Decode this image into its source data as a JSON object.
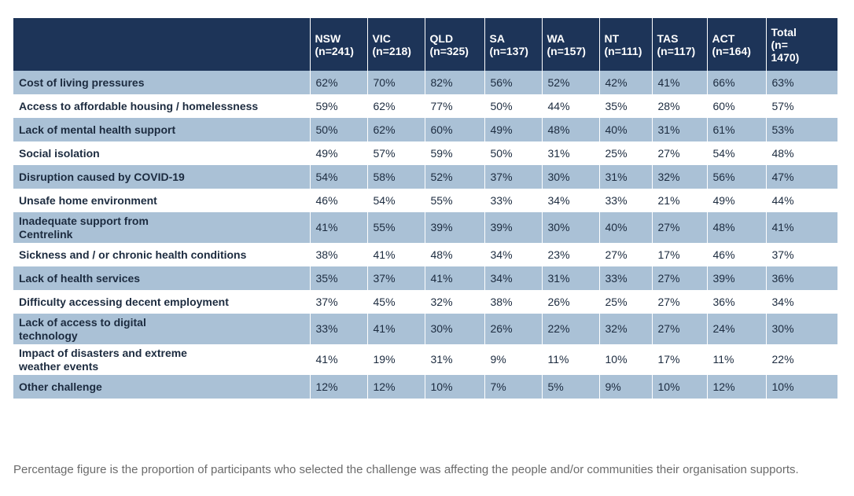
{
  "table": {
    "headers": [
      {
        "name": "",
        "sub": ""
      },
      {
        "name": "NSW",
        "sub": "(n=241)"
      },
      {
        "name": "VIC",
        "sub": "(n=218)"
      },
      {
        "name": "QLD",
        "sub": "(n=325)"
      },
      {
        "name": "SA",
        "sub": "(n=137)"
      },
      {
        "name": "WA",
        "sub": "(n=157)"
      },
      {
        "name": "NT",
        "sub": "(n=111)"
      },
      {
        "name": "TAS",
        "sub": "(n=117)"
      },
      {
        "name": "ACT",
        "sub": "(n=164)"
      },
      {
        "name": "Total",
        "sub": "(n=\n1470)"
      }
    ],
    "rows": [
      {
        "label": "Cost of living pressures",
        "values": [
          "62%",
          "70%",
          "82%",
          "56%",
          "52%",
          "42%",
          "41%",
          "66%",
          "63%"
        ]
      },
      {
        "label": "Access to affordable housing / homelessness",
        "values": [
          "59%",
          "62%",
          "77%",
          "50%",
          "44%",
          "35%",
          "28%",
          "60%",
          "57%"
        ]
      },
      {
        "label": "Lack of mental health support",
        "values": [
          "50%",
          "62%",
          "60%",
          "49%",
          "48%",
          "40%",
          "31%",
          "61%",
          "53%"
        ]
      },
      {
        "label": "Social isolation",
        "values": [
          "49%",
          "57%",
          "59%",
          "50%",
          "31%",
          "25%",
          "27%",
          "54%",
          "48%"
        ]
      },
      {
        "label": "Disruption caused by COVID-19",
        "values": [
          "54%",
          "58%",
          "52%",
          "37%",
          "30%",
          "31%",
          "32%",
          "56%",
          "47%"
        ]
      },
      {
        "label": "Unsafe home environment",
        "values": [
          "46%",
          "54%",
          "55%",
          "33%",
          "34%",
          "33%",
          "21%",
          "49%",
          "44%"
        ]
      },
      {
        "label": "Inadequate support from Centrelink",
        "values": [
          "41%",
          "55%",
          "39%",
          "39%",
          "30%",
          "40%",
          "27%",
          "48%",
          "41%"
        ]
      },
      {
        "label": "Sickness and / or chronic health conditions",
        "values": [
          "38%",
          "41%",
          "48%",
          "34%",
          "23%",
          "27%",
          "17%",
          "46%",
          "37%"
        ]
      },
      {
        "label": "Lack of health services",
        "values": [
          "35%",
          "37%",
          "41%",
          "34%",
          "31%",
          "33%",
          "27%",
          "39%",
          "36%"
        ]
      },
      {
        "label": "Difficulty accessing decent employment",
        "values": [
          "37%",
          "45%",
          "32%",
          "38%",
          "26%",
          "25%",
          "27%",
          "36%",
          "34%"
        ]
      },
      {
        "label": "Lack of access to digital technology",
        "values": [
          "33%",
          "41%",
          "30%",
          "26%",
          "22%",
          "32%",
          "27%",
          "24%",
          "30%"
        ]
      },
      {
        "label": "Impact of disasters and extreme weather events",
        "values": [
          "41%",
          "19%",
          "31%",
          "9%",
          "11%",
          "10%",
          "17%",
          "11%",
          "22%"
        ]
      },
      {
        "label": "Other challenge",
        "values": [
          "12%",
          "12%",
          "10%",
          "7%",
          "5%",
          "9%",
          "10%",
          "12%",
          "10%"
        ]
      }
    ]
  },
  "footnote": "Percentage figure is the proportion of participants who selected the challenge was affecting the people and/or communities their organisation supports.",
  "colors": {
    "header_bg": "#1d3458",
    "shaded_row": "#aac1d6",
    "text": "#1c2b3f"
  }
}
